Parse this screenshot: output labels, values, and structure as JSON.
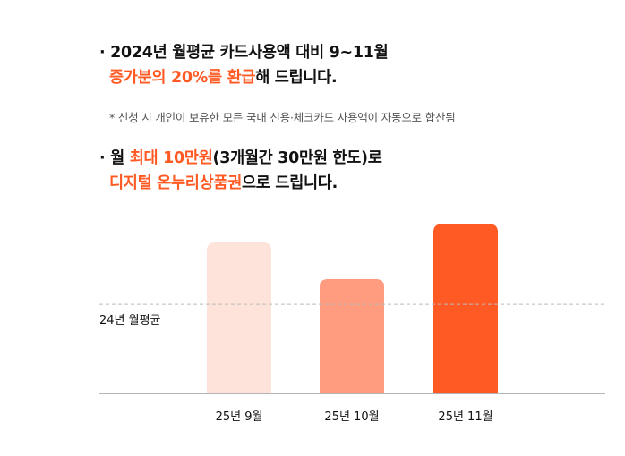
{
  "benefit": {
    "line1": {
      "bullet": "·",
      "text": "2024년 월평균 카드사용액 대비 9~11월"
    },
    "line2": {
      "highlight": "증가분의 20%를 환급",
      "rest": "해 드립니다."
    },
    "note": "* 신청 시 개인이 보유한 모든 국내 신용·체크카드 사용액이 자동으로 합산됨",
    "line3": {
      "bullet": "·",
      "prefix": "월 ",
      "highlight": "최대 10만원",
      "rest": "(3개월간 30만원 한도)로"
    },
    "line4": {
      "highlight": "디지털 온누리상품권",
      "rest": "으로 드립니다."
    }
  },
  "colors": {
    "accent": "#ff5a24",
    "bar_light": "#fde3d9",
    "bar_mid": "#ff9b7f",
    "bar_strong": "#ff5a24",
    "baseline_dash": "#bbbbbb",
    "axis": "#888888"
  },
  "chart_data": {
    "type": "bar",
    "categories": [
      "25년 9월",
      "25년 10월",
      "25년 11월"
    ],
    "values": [
      1.32,
      1.0,
      1.48
    ],
    "reference_line": {
      "label": "24년 월평균",
      "value": 0.78
    },
    "grid": false,
    "ylim": [
      0,
      1.5
    ]
  }
}
